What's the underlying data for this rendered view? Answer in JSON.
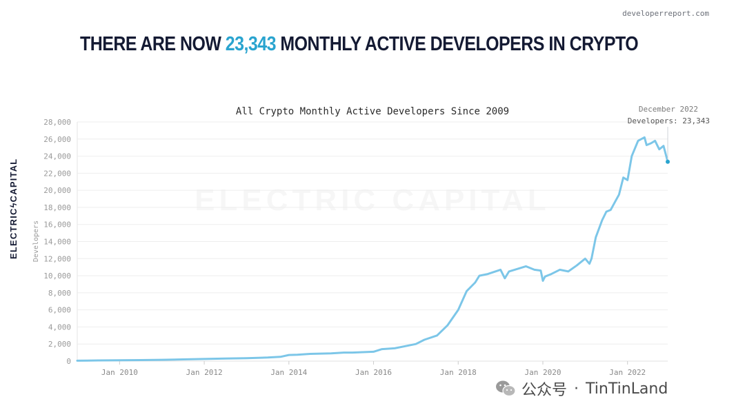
{
  "site_url": "developerreport.com",
  "headline": {
    "prefix": "THERE ARE NOW",
    "number": "23,343",
    "suffix": "MONTHLY ACTIVE DEVELOPERS IN CRYPTO"
  },
  "brand_side": "ELECTRICϟCAPITAL",
  "watermark": "ELECTRIC CAPITAL",
  "wechat": {
    "label": "公众号",
    "sep": "·",
    "account": "TinTinLand"
  },
  "colors": {
    "line": "#7cc6e8",
    "highlight": "#2aa4cf",
    "heading": "#141a33",
    "grid": "#eeeeee"
  },
  "tooltip": {
    "date": "December 2022",
    "value_label": "Developers: 23,343"
  },
  "chart_data": {
    "type": "line",
    "title": "All Crypto Monthly Active Developers Since 2009",
    "xlabel": "",
    "ylabel": "Developers",
    "ylim": [
      0,
      28000
    ],
    "xlim": [
      2009.0,
      2022.95
    ],
    "yticks": [
      0,
      2000,
      4000,
      6000,
      8000,
      10000,
      12000,
      14000,
      16000,
      18000,
      20000,
      22000,
      24000,
      26000,
      28000
    ],
    "ytick_labels": [
      "0",
      "2,000",
      "4,000",
      "6,000",
      "8,000",
      "10,000",
      "12,000",
      "14,000",
      "16,000",
      "18,000",
      "20,000",
      "22,000",
      "24,000",
      "26,000",
      "28,000"
    ],
    "xticks": [
      2010,
      2012,
      2014,
      2016,
      2018,
      2020,
      2022
    ],
    "xtick_labels": [
      "Jan 2010",
      "Jan 2012",
      "Jan 2014",
      "Jan 2016",
      "Jan 2018",
      "Jan 2020",
      "Jan 2022"
    ],
    "series": [
      {
        "name": "Developers",
        "x": [
          2009.0,
          2009.5,
          2010.0,
          2010.5,
          2011.0,
          2011.5,
          2012.0,
          2012.5,
          2013.0,
          2013.5,
          2013.8,
          2014.0,
          2014.2,
          2014.5,
          2015.0,
          2015.3,
          2015.5,
          2016.0,
          2016.2,
          2016.5,
          2016.8,
          2017.0,
          2017.2,
          2017.5,
          2017.75,
          2018.0,
          2018.2,
          2018.4,
          2018.5,
          2018.7,
          2019.0,
          2019.1,
          2019.2,
          2019.4,
          2019.6,
          2019.8,
          2019.95,
          2020.0,
          2020.05,
          2020.2,
          2020.4,
          2020.6,
          2020.8,
          2021.0,
          2021.1,
          2021.15,
          2021.25,
          2021.4,
          2021.5,
          2021.6,
          2021.8,
          2021.9,
          2022.0,
          2022.1,
          2022.25,
          2022.4,
          2022.45,
          2022.55,
          2022.65,
          2022.75,
          2022.85,
          2022.95
        ],
        "values": [
          50,
          80,
          100,
          120,
          150,
          200,
          250,
          300,
          350,
          420,
          500,
          720,
          750,
          850,
          900,
          1000,
          1000,
          1100,
          1400,
          1500,
          1800,
          2000,
          2500,
          3000,
          4200,
          6000,
          8200,
          9200,
          10000,
          10200,
          10700,
          9700,
          10500,
          10800,
          11100,
          10700,
          10600,
          9400,
          9900,
          10200,
          10700,
          10500,
          11200,
          12000,
          11400,
          12000,
          14500,
          16500,
          17500,
          17700,
          19500,
          21500,
          21200,
          24000,
          25800,
          26200,
          25300,
          25500,
          25800,
          24800,
          25200,
          23343
        ]
      }
    ]
  }
}
